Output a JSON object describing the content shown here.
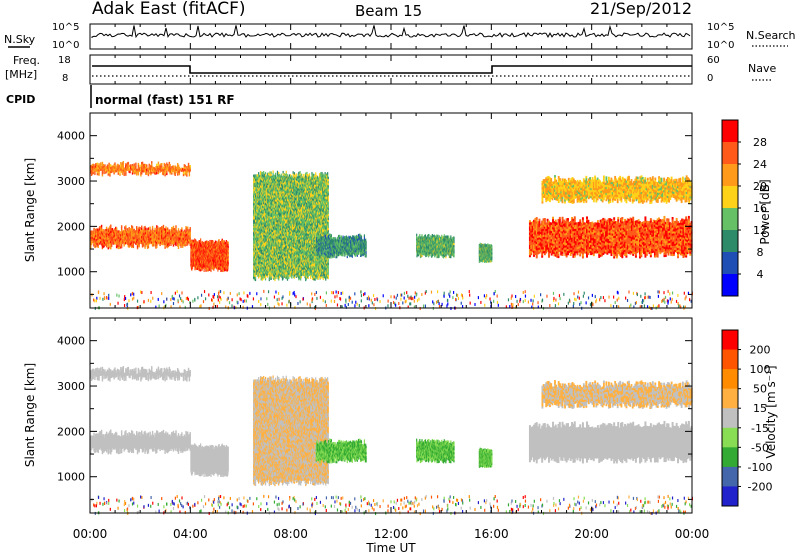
{
  "header": {
    "station": "Adak East (fitACF)",
    "beam": "Beam 15",
    "date": "21/Sep/2012"
  },
  "colors": {
    "frame": "#000000",
    "power_scale": [
      "#0000ff",
      "#1f4fb5",
      "#2e8b6a",
      "#66c066",
      "#ffd21a",
      "#ff9a1a",
      "#ff5a1a",
      "#ff0000"
    ],
    "velocity_scale": [
      "#2222cc",
      "#4466aa",
      "#33aa33",
      "#88dd55",
      "#c0c0c0",
      "#ffb040",
      "#ff8c00",
      "#ff5500",
      "#ff0000"
    ]
  },
  "panels": {
    "nsky": {
      "left_label": "N.Sky",
      "right_label": "N.Search",
      "left_ticks": [
        "10^5",
        "10^0"
      ],
      "right_ticks": [
        "10^5",
        "10^0"
      ]
    },
    "freq": {
      "left_label": "Freq.",
      "left_unit": "[MHz]",
      "right_label": "Nave",
      "left_ticks": [
        "18",
        "8"
      ],
      "right_ticks": [
        "60",
        "0"
      ],
      "cpid_label": "CPID",
      "cpid_text": "normal (fast) 151 RF"
    }
  },
  "chart_data": [
    {
      "type": "heatmap",
      "name": "power",
      "ylabel": "Slant Range [km]",
      "y_ticks": [
        "1000",
        "2000",
        "3000",
        "4000"
      ],
      "ylim": [
        200,
        4500
      ],
      "colorbar": {
        "label": "Power [dB]",
        "ticks": [
          "28",
          "24",
          "20",
          "16",
          "12",
          "8",
          "4"
        ],
        "range": [
          0,
          32
        ]
      },
      "echo_bands": [
        {
          "t": [
            0,
            4
          ],
          "range_km": [
            1500,
            2000
          ],
          "power_db": 26
        },
        {
          "t": [
            4,
            5.5
          ],
          "range_km": [
            1000,
            1700
          ],
          "power_db": 28
        },
        {
          "t": [
            0,
            4
          ],
          "range_km": [
            3100,
            3400
          ],
          "power_db": 25
        },
        {
          "t": [
            6.5,
            9.5
          ],
          "range_km": [
            800,
            3200
          ],
          "power_db": 14
        },
        {
          "t": [
            9,
            11
          ],
          "range_km": [
            1300,
            1800
          ],
          "power_db": 10
        },
        {
          "t": [
            13,
            14.5
          ],
          "range_km": [
            1300,
            1800
          ],
          "power_db": 12
        },
        {
          "t": [
            15.5,
            16
          ],
          "range_km": [
            1200,
            1600
          ],
          "power_db": 12
        },
        {
          "t": [
            17.5,
            24
          ],
          "range_km": [
            1300,
            2200
          ],
          "power_db": 28
        },
        {
          "t": [
            18,
            24
          ],
          "range_km": [
            2500,
            3100
          ],
          "power_db": 20
        }
      ]
    },
    {
      "type": "heatmap",
      "name": "velocity",
      "ylabel": "Slant Range [km]",
      "y_ticks": [
        "1000",
        "2000",
        "3000",
        "4000"
      ],
      "ylim": [
        200,
        4500
      ],
      "colorbar": {
        "label": "Velocity [m s⁻¹]",
        "ticks": [
          "200",
          "100",
          "50",
          "15",
          "-15",
          "-50",
          "-100",
          "-200"
        ],
        "range": [
          -250,
          250
        ]
      }
    }
  ],
  "x_axis": {
    "label": "Time UT",
    "ticks": [
      "00:00",
      "04:00",
      "08:00",
      "12:00",
      "16:00",
      "20:00",
      "00:00"
    ],
    "range_hours": [
      0,
      24
    ]
  }
}
